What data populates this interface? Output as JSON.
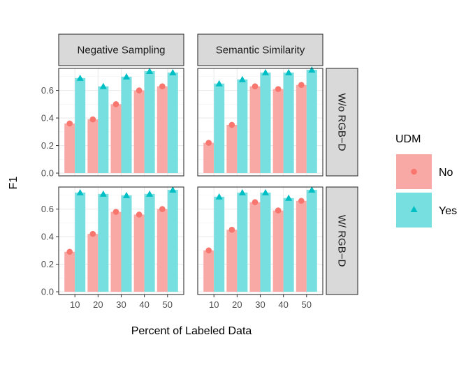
{
  "chart_data": {
    "type": "bar",
    "ylabel": "F1",
    "xlabel": "Percent of Labeled Data",
    "x_categories": [
      "10",
      "20",
      "30",
      "40",
      "50"
    ],
    "y_ticks": [
      "0.0",
      "0.2",
      "0.4",
      "0.6"
    ],
    "ylim": [
      -0.02,
      0.76
    ],
    "grid": true,
    "col_facets": [
      "Negative Sampling",
      "Semantic Similarity"
    ],
    "row_facets": [
      "W/o RGB−D",
      "W/ RGB−D"
    ],
    "legend": {
      "title": "UDM",
      "placement": "right",
      "items": [
        {
          "label": "No",
          "fill": "#f8a9a5",
          "point_color": "#f8766d",
          "shape": "circle"
        },
        {
          "label": "Yes",
          "fill": "#77dfdf",
          "point_color": "#00bfc4",
          "shape": "triangle"
        }
      ]
    },
    "panels": [
      {
        "row": 0,
        "col": 0,
        "series": [
          {
            "name": "No",
            "values": [
              0.36,
              0.39,
              0.5,
              0.6,
              0.63
            ]
          },
          {
            "name": "Yes",
            "values": [
              0.69,
              0.63,
              0.7,
              0.74,
              0.73
            ]
          }
        ]
      },
      {
        "row": 0,
        "col": 1,
        "series": [
          {
            "name": "No",
            "values": [
              0.22,
              0.35,
              0.63,
              0.61,
              0.64
            ]
          },
          {
            "name": "Yes",
            "values": [
              0.65,
              0.68,
              0.73,
              0.73,
              0.75
            ]
          }
        ]
      },
      {
        "row": 1,
        "col": 0,
        "series": [
          {
            "name": "No",
            "values": [
              0.29,
              0.42,
              0.58,
              0.56,
              0.6
            ]
          },
          {
            "name": "Yes",
            "values": [
              0.72,
              0.71,
              0.7,
              0.71,
              0.74
            ]
          }
        ]
      },
      {
        "row": 1,
        "col": 1,
        "series": [
          {
            "name": "No",
            "values": [
              0.3,
              0.45,
              0.65,
              0.59,
              0.66
            ]
          },
          {
            "name": "Yes",
            "values": [
              0.69,
              0.72,
              0.72,
              0.68,
              0.74
            ]
          }
        ]
      }
    ]
  }
}
